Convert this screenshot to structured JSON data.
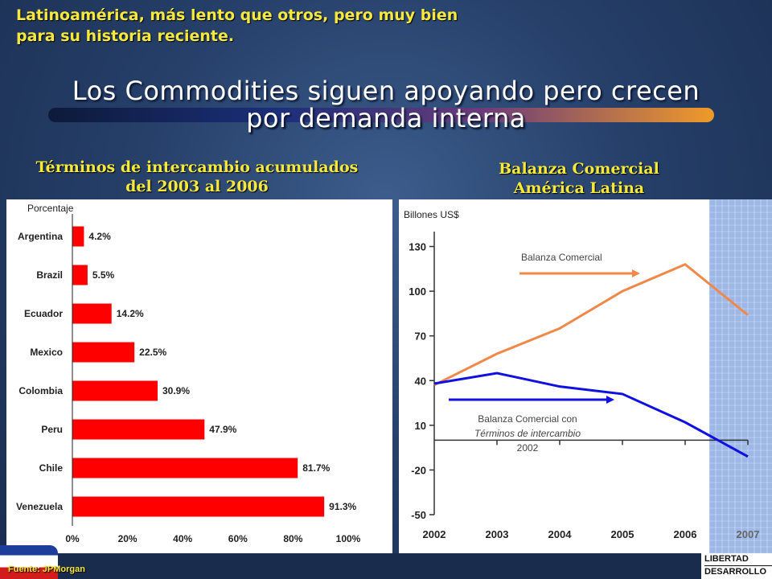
{
  "header": {
    "subtitle_line1": "Latinoamérica, más lento que otros, pero muy bien",
    "subtitle_line2": "para su historia reciente.",
    "title_line1": "Los Commodities siguen apoyando pero crecen",
    "title_line2": "por demanda interna"
  },
  "left_heading": {
    "line1": "Términos de intercambio acumulados",
    "line2": "del 2003 al 2006"
  },
  "right_heading": {
    "line1": "Balanza Comercial",
    "line2": "América Latina"
  },
  "footer": {
    "source": "Fuente: JPMorgan",
    "logo_line1": "LIBERTAD",
    "logo_line2": "DESARROLLO"
  },
  "colors": {
    "bar": "#ff0000",
    "orange_line": "#f0884a",
    "blue_line": "#1010e0",
    "shade": "#9db7e6"
  },
  "chart_data": [
    {
      "type": "bar",
      "orientation": "horizontal",
      "ylabel": "Porcentaje",
      "categories": [
        "Argentina",
        "Brazil",
        "Ecuador",
        "Mexico",
        "Colombia",
        "Peru",
        "Chile",
        "Venezuela"
      ],
      "values": [
        4.2,
        5.5,
        14.2,
        22.5,
        30.9,
        47.9,
        81.7,
        91.3
      ],
      "value_labels": [
        "4.2%",
        "5.5%",
        "14.2%",
        "22.5%",
        "30.9%",
        "47.9%",
        "81.7%",
        "91.3%"
      ],
      "x_ticks": [
        "0%",
        "20%",
        "40%",
        "60%",
        "80%",
        "100%"
      ],
      "xlim": [
        0,
        100
      ]
    },
    {
      "type": "line",
      "ylabel": "Billones US$",
      "x": [
        "2002",
        "2003",
        "2004",
        "2005",
        "2006",
        "2007"
      ],
      "y_ticks": [
        "130",
        "100",
        "70",
        "40",
        "10",
        "-20",
        "-50"
      ],
      "ylim": [
        -50,
        140
      ],
      "shaded_forecast": "2007",
      "series": [
        {
          "name": "Balanza Comercial",
          "values": [
            37,
            58,
            75,
            100,
            118,
            84
          ]
        },
        {
          "name": "Balanza  Comercial con Términos de intercambio 2002",
          "values": [
            38,
            45,
            36,
            31,
            12,
            -11
          ]
        }
      ],
      "annotation_1": "Balanza Comercial",
      "annotation_2_line1": "Balanza  Comercial con",
      "annotation_2_line2": "Términos de intercambio",
      "annotation_2_line3": "2002"
    }
  ]
}
